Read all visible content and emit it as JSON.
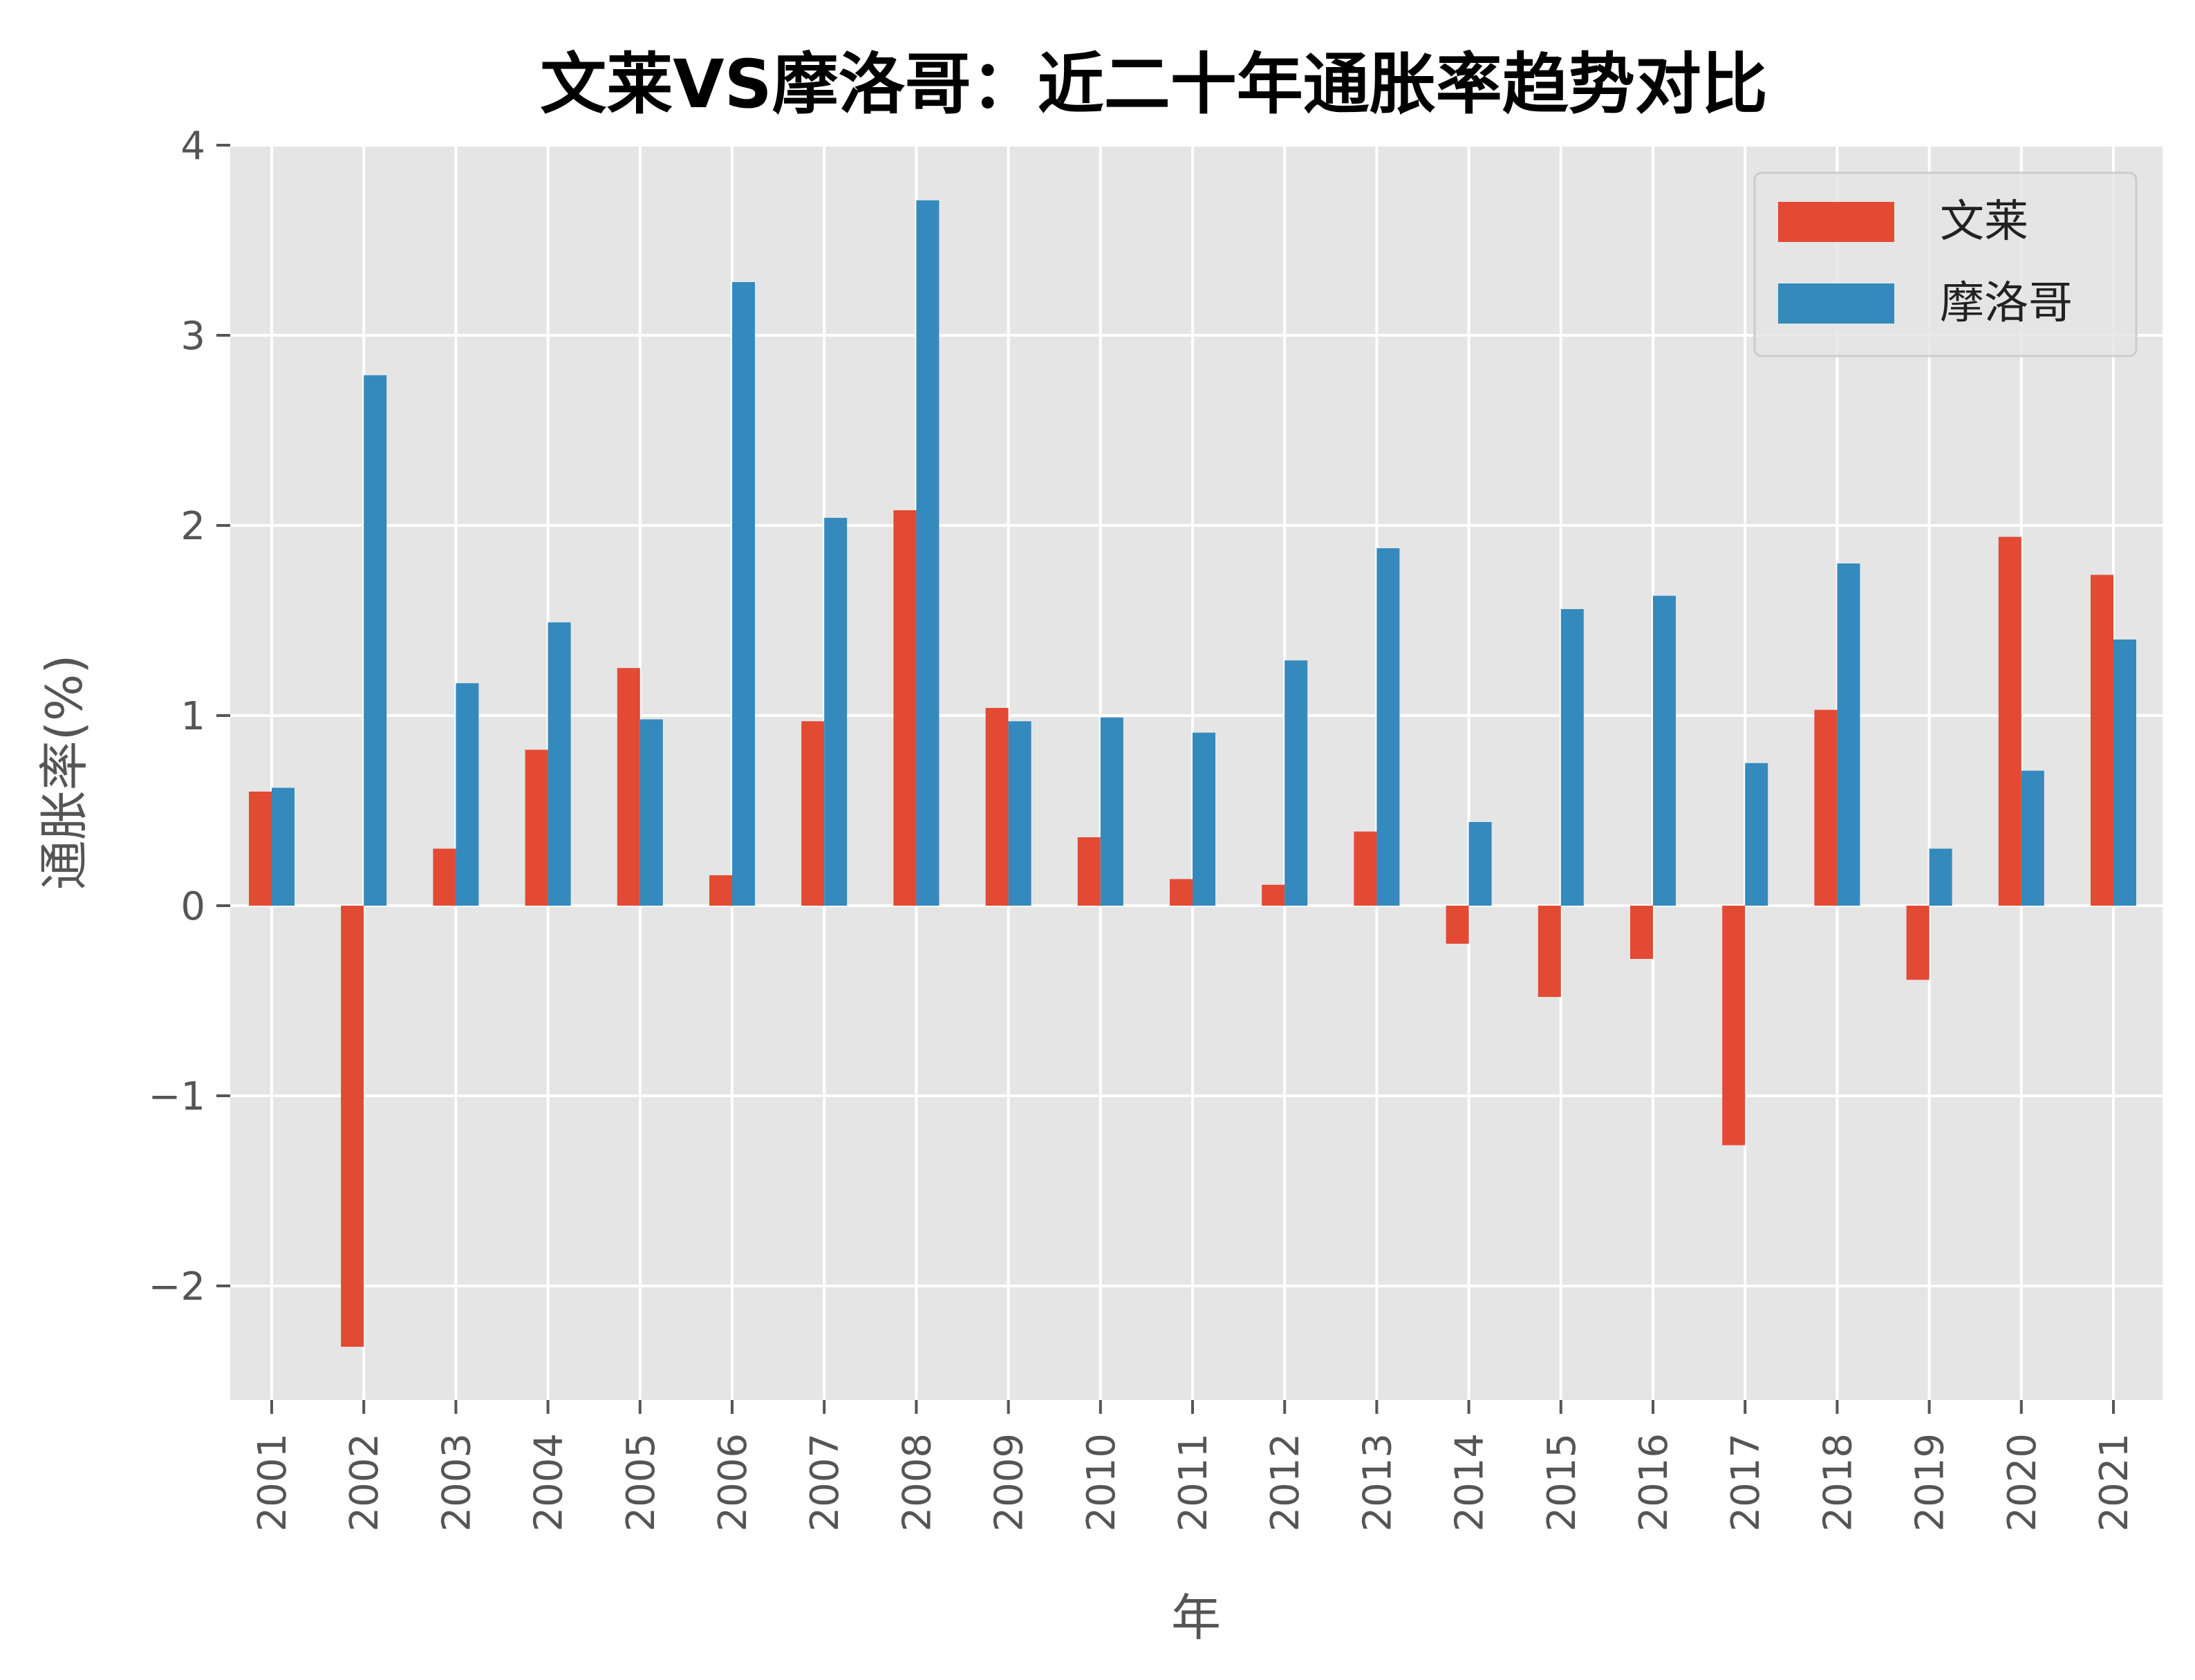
{
  "chart_data": {
    "type": "bar",
    "title": "文莱VS摩洛哥：近二十年通胀率趋势对比",
    "xlabel": "年",
    "ylabel": "通胀率(%)",
    "ylim": [
      -2.6,
      4
    ],
    "yticks": [
      -2,
      -1,
      0,
      1,
      2,
      3,
      4
    ],
    "ytick_labels": [
      "−2",
      "−1",
      "0",
      "1",
      "2",
      "3",
      "4"
    ],
    "grid": true,
    "legend_position": "top-right",
    "categories": [
      "2001",
      "2002",
      "2003",
      "2004",
      "2005",
      "2006",
      "2007",
      "2008",
      "2009",
      "2010",
      "2011",
      "2012",
      "2013",
      "2014",
      "2015",
      "2016",
      "2017",
      "2018",
      "2019",
      "2020",
      "2021"
    ],
    "series": [
      {
        "name": "文莱",
        "color": "#E24A33",
        "values": [
          0.6,
          -2.32,
          0.3,
          0.82,
          1.25,
          0.16,
          0.97,
          2.08,
          1.04,
          0.36,
          0.14,
          0.11,
          0.39,
          -0.2,
          -0.48,
          -0.28,
          -1.26,
          1.03,
          -0.39,
          1.94,
          1.74
        ]
      },
      {
        "name": "摩洛哥",
        "color": "#348ABD",
        "values": [
          0.62,
          2.79,
          1.17,
          1.49,
          0.98,
          3.28,
          2.04,
          3.71,
          0.97,
          0.99,
          0.91,
          1.29,
          1.88,
          0.44,
          1.56,
          1.63,
          0.75,
          1.8,
          0.3,
          0.71,
          1.4
        ]
      }
    ]
  },
  "colors": {
    "plot_background": "#E5E5E5",
    "grid": "#FFFFFF"
  }
}
